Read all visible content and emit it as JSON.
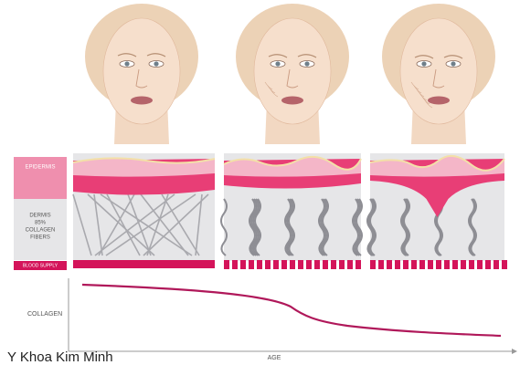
{
  "legend": {
    "epidermis": "EPIDERMIS",
    "dermis": [
      "DERMIS",
      "85%",
      "COLLAGEN",
      "FIBERS"
    ],
    "blood_supply": "BLOOD SUPPLY"
  },
  "graph": {
    "y_label": "COLLAGEN",
    "x_label": "AGE"
  },
  "watermark": "Y Khoa Kim Minh"
}
